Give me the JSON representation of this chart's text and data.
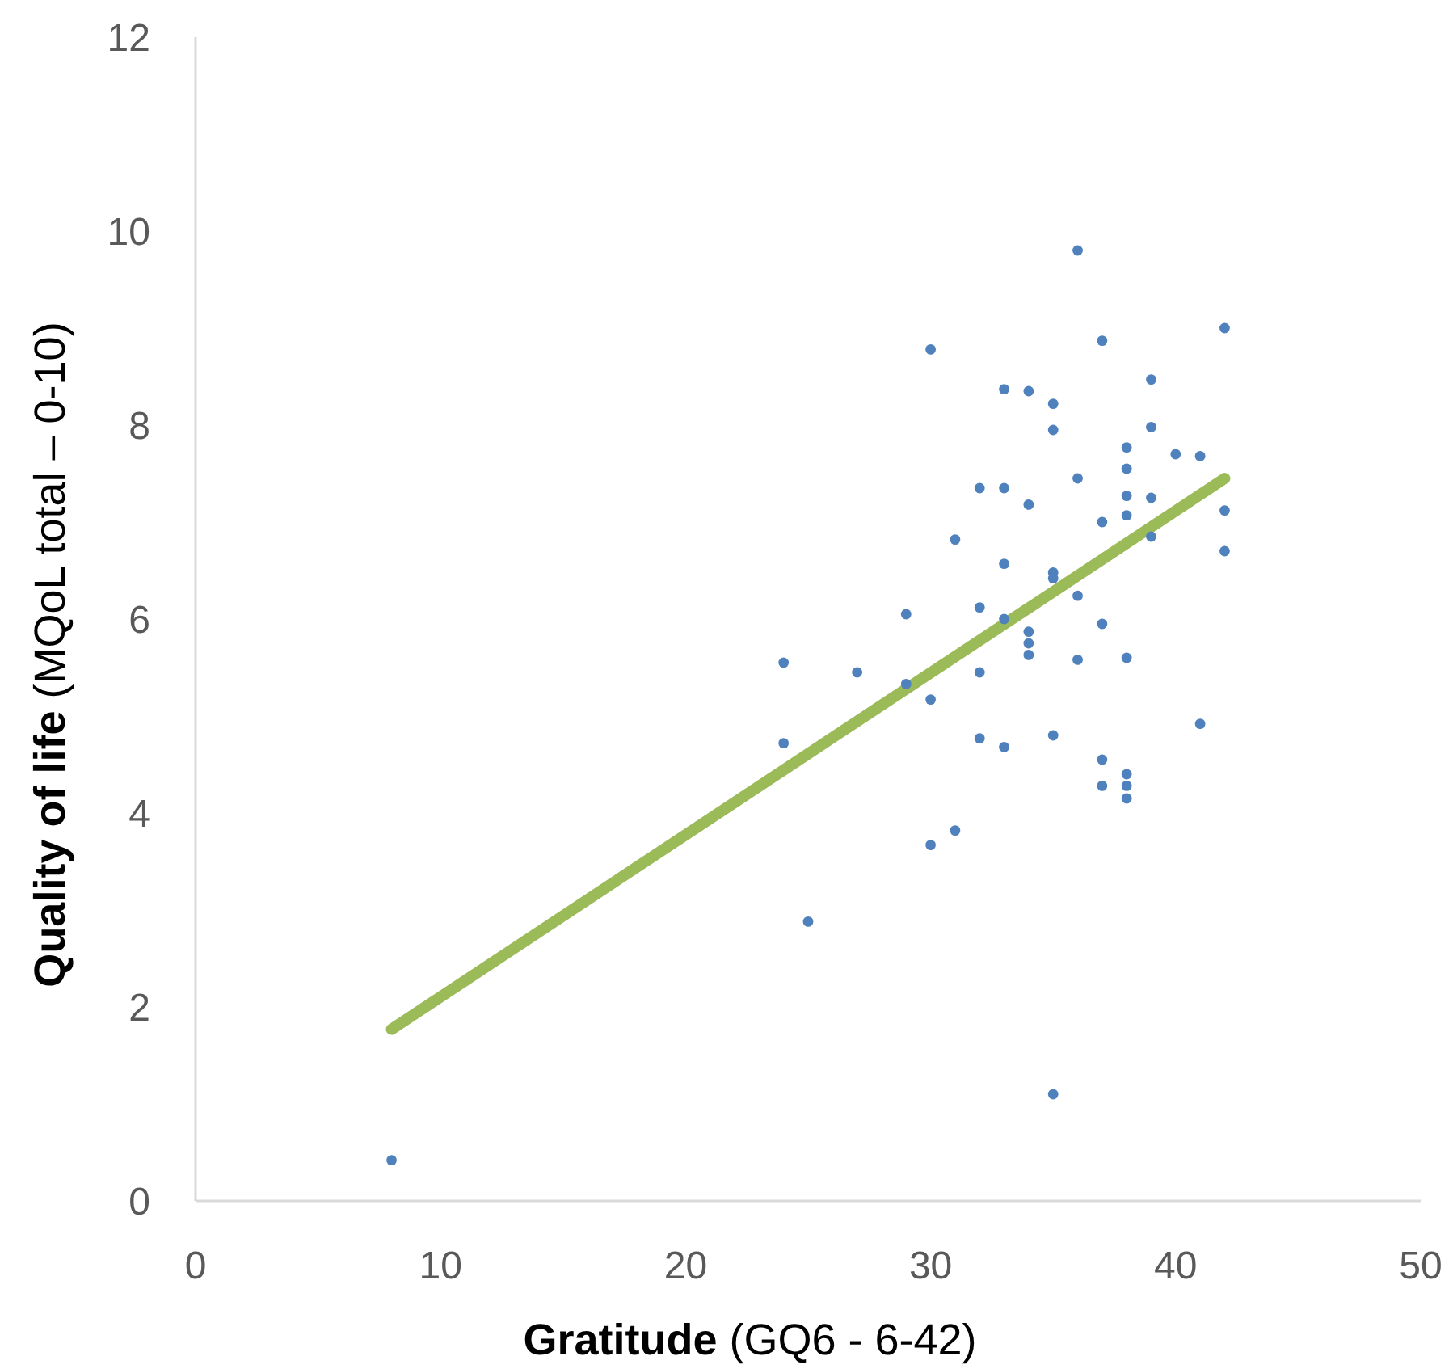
{
  "chart_data": {
    "type": "scatter",
    "xlabel": "Gratitude (GQ6 - 6-42)",
    "ylabel": "Quality of life (MQoL total – 0-10)",
    "xlim": [
      0,
      50
    ],
    "xticks": [
      0,
      10,
      20,
      30,
      40,
      50
    ],
    "ylim": [
      0,
      12
    ],
    "yticks": [
      0,
      2,
      4,
      6,
      8,
      10,
      12
    ],
    "grid": false,
    "series": [
      {
        "color": "#4f81bd",
        "marker": "circle",
        "x": [
          8,
          24,
          24,
          25,
          27,
          29,
          29,
          30,
          30,
          30,
          31,
          31,
          32,
          32,
          32,
          32,
          33,
          33,
          33,
          33,
          33,
          34,
          34,
          34,
          34,
          34,
          35,
          35,
          35,
          35,
          35,
          35,
          36,
          36,
          36,
          36,
          37,
          37,
          37,
          37,
          37,
          38,
          38,
          38,
          38,
          38,
          38,
          38,
          38,
          39,
          39,
          39,
          39,
          40,
          41,
          41,
          42,
          42,
          42
        ],
        "values": [
          0.42,
          5.55,
          4.72,
          2.88,
          5.45,
          6.05,
          5.33,
          8.78,
          5.17,
          3.67,
          6.82,
          3.82,
          7.35,
          6.12,
          5.45,
          4.77,
          8.37,
          7.35,
          6.57,
          6.0,
          4.68,
          8.35,
          7.18,
          5.87,
          5.75,
          5.63,
          8.22,
          7.95,
          6.48,
          6.42,
          4.8,
          1.1,
          9.8,
          7.45,
          6.24,
          5.58,
          8.87,
          7.0,
          5.95,
          4.55,
          4.28,
          7.77,
          7.55,
          7.27,
          7.07,
          5.6,
          4.4,
          4.28,
          4.15,
          8.47,
          7.98,
          7.25,
          6.85,
          7.7,
          7.68,
          4.92,
          9.0,
          7.12,
          6.7
        ]
      },
      {
        "type": "line",
        "color": "#9bbb59",
        "marker": "none",
        "line_style": "solid",
        "x": [
          8,
          42
        ],
        "values": [
          1.77,
          7.45
        ]
      }
    ]
  }
}
